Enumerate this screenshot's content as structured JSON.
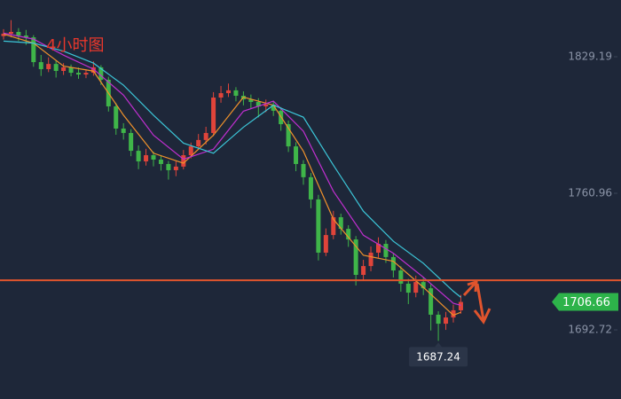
{
  "chart_data": {
    "type": "candlestick",
    "annotation": "4小时图",
    "ylim": [
      1658.17,
      1857.55
    ],
    "yticks": [
      1692.72,
      1760.96,
      1829.19
    ],
    "up_color": "#e0443a",
    "down_color": "#3fb549",
    "open": [
      1839.5,
      1840.7,
      1841.6,
      1839.8,
      1838.9,
      1826.5,
      1823.0,
      1825.6,
      1822.1,
      1823.9,
      1821.2,
      1820.3,
      1821.2,
      1823.9,
      1817.7,
      1804.4,
      1793.3,
      1791.1,
      1782.2,
      1776.9,
      1780.0,
      1777.8,
      1775.6,
      1772.5,
      1774.3,
      1780.0,
      1784.4,
      1787.6,
      1791.1,
      1808.8,
      1811.0,
      1812.4,
      1809.7,
      1807.9,
      1806.6,
      1804.4,
      1805.3,
      1802.2,
      1795.5,
      1784.4,
      1775.6,
      1769.0,
      1757.9,
      1731.3,
      1740.1,
      1749.0,
      1743.2,
      1737.9,
      1720.2,
      1724.6,
      1731.3,
      1735.7,
      1729.1,
      1722.4,
      1715.8,
      1711.3,
      1716.6,
      1713.5,
      1700.3,
      1695.8,
      1698.9,
      1702.5
    ],
    "high": [
      1843.0,
      1847.5,
      1843.5,
      1842.6,
      1840.0,
      1830.1,
      1828.9,
      1827.4,
      1826.0,
      1825.3,
      1823.8,
      1822.9,
      1826.9,
      1825.0,
      1819.2,
      1806.1,
      1796.0,
      1793.0,
      1784.9,
      1783.2,
      1781.8,
      1779.8,
      1777.1,
      1777.0,
      1782.6,
      1786.3,
      1790.6,
      1794.2,
      1811.5,
      1814.6,
      1815.8,
      1814.0,
      1811.9,
      1810.3,
      1808.5,
      1807.8,
      1806.9,
      1804.0,
      1797.3,
      1786.5,
      1777.5,
      1771.1,
      1760.2,
      1743.4,
      1752.2,
      1750.8,
      1745.0,
      1739.6,
      1727.7,
      1734.4,
      1739.0,
      1737.6,
      1731.0,
      1724.5,
      1718.2,
      1719.8,
      1718.9,
      1715.6,
      1702.0,
      1701.7,
      1705.3,
      1710.2
    ],
    "low": [
      1837.8,
      1838.9,
      1837.0,
      1835.1,
      1824.2,
      1819.6,
      1821.5,
      1818.8,
      1820.1,
      1819.4,
      1818.2,
      1818.5,
      1819.7,
      1815.1,
      1801.8,
      1790.2,
      1787.8,
      1779.5,
      1773.0,
      1774.8,
      1774.4,
      1772.3,
      1767.8,
      1769.5,
      1772.9,
      1778.4,
      1782.9,
      1785.3,
      1789.5,
      1806.2,
      1809.1,
      1806.9,
      1804.9,
      1803.5,
      1798.9,
      1801.5,
      1799.6,
      1792.2,
      1781.6,
      1772.0,
      1765.2,
      1753.5,
      1727.4,
      1729.6,
      1738.0,
      1740.3,
      1734.2,
      1714.9,
      1717.3,
      1722.0,
      1728.8,
      1726.2,
      1718.9,
      1711.8,
      1705.6,
      1709.0,
      1710.1,
      1692.4,
      1687.24,
      1692.7,
      1696.4,
      1700.8
    ],
    "close": [
      1840.7,
      1841.6,
      1839.8,
      1838.9,
      1826.5,
      1823.0,
      1825.6,
      1822.1,
      1823.9,
      1821.2,
      1820.3,
      1821.2,
      1823.9,
      1817.7,
      1804.4,
      1793.3,
      1791.1,
      1782.2,
      1776.9,
      1780.0,
      1777.8,
      1775.6,
      1772.5,
      1774.3,
      1780.0,
      1784.4,
      1787.6,
      1791.1,
      1808.8,
      1811.0,
      1812.4,
      1809.7,
      1807.9,
      1806.6,
      1804.4,
      1805.3,
      1802.2,
      1795.5,
      1784.4,
      1775.6,
      1769.0,
      1757.9,
      1731.3,
      1740.1,
      1749.0,
      1743.2,
      1737.9,
      1720.2,
      1724.6,
      1731.3,
      1735.7,
      1729.1,
      1722.4,
      1715.8,
      1711.3,
      1716.6,
      1713.5,
      1700.3,
      1695.8,
      1698.9,
      1702.5,
      1706.66
    ],
    "moving_averages": [
      {
        "color": "#f0922b",
        "x": [
          0,
          4,
          8,
          12,
          16,
          20,
          24,
          28,
          32,
          36,
          40,
          44,
          48,
          52,
          56,
          60,
          61
        ],
        "values": [
          1840.5,
          1836,
          1824.5,
          1822,
          1800,
          1781,
          1776,
          1790,
          1809,
          1805,
          1782,
          1748,
          1730,
          1727,
          1714,
          1700,
          1701.5
        ]
      },
      {
        "color": "#c02fd0",
        "x": [
          0,
          4,
          8,
          12,
          16,
          20,
          24,
          28,
          32,
          36,
          40,
          44,
          48,
          52,
          56,
          60,
          61
        ],
        "values": [
          1841,
          1838,
          1830,
          1823,
          1810,
          1790,
          1778,
          1783,
          1802,
          1807,
          1792,
          1762,
          1740,
          1731,
          1719,
          1706,
          1705
        ]
      },
      {
        "color": "#3cc6d8",
        "x": [
          0,
          4,
          8,
          12,
          16,
          20,
          24,
          28,
          32,
          36,
          40,
          44,
          48,
          52,
          56,
          60,
          61
        ],
        "values": [
          1837,
          1836,
          1832,
          1826,
          1815,
          1800,
          1786,
          1781,
          1794,
          1805,
          1799,
          1775,
          1752,
          1737,
          1726,
          1712,
          1709
        ]
      }
    ],
    "reference_line": {
      "value": 1717.5,
      "color": "#e0542d"
    },
    "price_tag_color": "#2db34a"
  }
}
